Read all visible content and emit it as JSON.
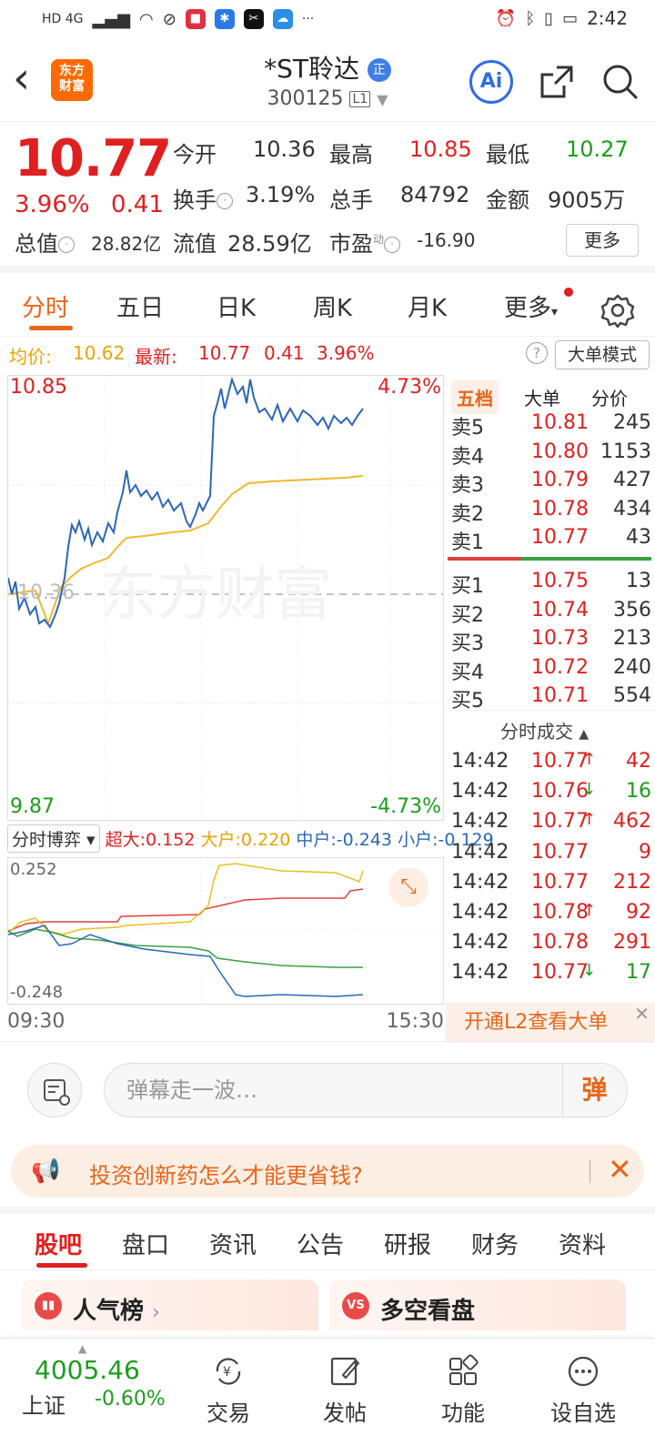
{
  "status": {
    "time": "2:42",
    "left_label": "HD 4G"
  },
  "header": {
    "logo_line1": "东方",
    "logo_line2": "财富",
    "name": "*ST聆达",
    "badge": "正",
    "code": "300125",
    "level": "L1",
    "ai_label": "Ai"
  },
  "quote": {
    "price": "10.77",
    "pct": "3.96%",
    "change": "0.41",
    "open_label": "今开",
    "open": "10.36",
    "high_label": "最高",
    "high": "10.85",
    "low_label": "最低",
    "low": "10.27",
    "turnover_label": "换手",
    "turnover": "3.19%",
    "volume_label": "总手",
    "volume": "84792",
    "amount_label": "金额",
    "amount": "9005万",
    "mktcap_label": "总值",
    "mktcap": "28.82亿",
    "float_label": "流值",
    "float": "28.59亿",
    "pe_label": "市盈",
    "pe_sup": "动",
    "pe": "-16.90",
    "more": "更多"
  },
  "tabs": [
    "分时",
    "五日",
    "日K",
    "周K",
    "月K",
    "更多"
  ],
  "avg": {
    "avg_label": "均价:",
    "avg": "10.62",
    "latest_label": "最新:",
    "latest": "10.77",
    "change": "0.41",
    "pct": "3.96%",
    "mode_button": "大单模式"
  },
  "chart": {
    "top_price": "10.85",
    "top_pct": "4.73%",
    "mid_price": "10.36",
    "bottom_price": "9.87",
    "bottom_pct": "-4.73%",
    "watermark": "东方财富"
  },
  "orderbook": {
    "tabs": [
      "五档",
      "大单",
      "分价"
    ],
    "asks": [
      {
        "label": "卖5",
        "price": "10.81",
        "vol": "245"
      },
      {
        "label": "卖4",
        "price": "10.80",
        "vol": "1153"
      },
      {
        "label": "卖3",
        "price": "10.79",
        "vol": "427"
      },
      {
        "label": "卖2",
        "price": "10.78",
        "vol": "434"
      },
      {
        "label": "卖1",
        "price": "10.77",
        "vol": "43"
      }
    ],
    "bids": [
      {
        "label": "买1",
        "price": "10.75",
        "vol": "13"
      },
      {
        "label": "买2",
        "price": "10.74",
        "vol": "356"
      },
      {
        "label": "买3",
        "price": "10.73",
        "vol": "213"
      },
      {
        "label": "买4",
        "price": "10.72",
        "vol": "240"
      },
      {
        "label": "买5",
        "price": "10.71",
        "vol": "554"
      }
    ],
    "trades_title": "分时成交",
    "trades": [
      {
        "time": "14:42",
        "price": "10.77",
        "dir": "↑",
        "vol": "42"
      },
      {
        "time": "14:42",
        "price": "10.76",
        "dir": "↓",
        "vol": "16"
      },
      {
        "time": "14:42",
        "price": "10.77",
        "dir": "↑",
        "vol": "462"
      },
      {
        "time": "14:42",
        "price": "10.77",
        "dir": "",
        "vol": "9"
      },
      {
        "time": "14:42",
        "price": "10.77",
        "dir": "",
        "vol": "212"
      },
      {
        "time": "14:42",
        "price": "10.78",
        "dir": "↑",
        "vol": "92"
      },
      {
        "time": "14:42",
        "price": "10.78",
        "dir": "",
        "vol": "291"
      },
      {
        "time": "14:42",
        "price": "10.77",
        "dir": "↓",
        "vol": "17"
      }
    ],
    "l2_banner": "开通L2查看大单"
  },
  "fundflow": {
    "selector": "分时博弈",
    "super_label": "超大:",
    "super": "0.152",
    "large_label": "大户:",
    "large": "0.220",
    "mid_label": "中户:",
    "mid": "-0.243",
    "small_label": "小户:",
    "small": "-0.129",
    "top": "0.252",
    "bottom": "-0.248",
    "start_time": "09:30",
    "end_time": "15:30"
  },
  "comment": {
    "placeholder": "弹幕走一波…",
    "danmu": "弹"
  },
  "ad": {
    "text": "投资创新药怎么才能更省钱?"
  },
  "bottom_tabs": [
    "股吧",
    "盘口",
    "资讯",
    "公告",
    "研报",
    "财务",
    "资料"
  ],
  "cards": [
    {
      "title": "人气榜",
      "icon": "bar-chart-icon"
    },
    {
      "title": "多空看盘",
      "icon": "vs-icon"
    }
  ],
  "index": {
    "value": "4005.46",
    "name": "上证",
    "pct": "-0.60%"
  },
  "nav": [
    "交易",
    "发帖",
    "功能",
    "设自选"
  ],
  "colors": {
    "up": "#e02020",
    "down": "#1a9e1a",
    "accent": "#e8651a",
    "price_line": "#2b67b8",
    "avg_line": "#f2b830"
  }
}
